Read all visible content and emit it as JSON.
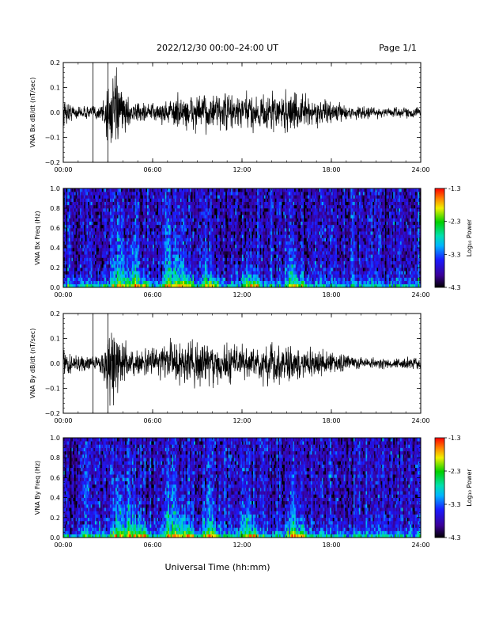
{
  "header": {
    "title": "2022/12/30   00:00–24:00 UT",
    "page": "Page 1/1"
  },
  "colorbar": {
    "label": "Log₁₀ Power",
    "ticks": [
      "-1.3",
      "-2.3",
      "-3.3",
      "-4.3"
    ]
  },
  "xlabel": "Universal Time (hh:mm)",
  "chart_data": [
    {
      "type": "line",
      "ylabel": "VNA Bx dB/dt (nT/sec)",
      "xlim_hours": [
        0,
        24
      ],
      "ylim": [
        -0.2,
        0.2
      ],
      "x_ticks": [
        "00:00",
        "06:00",
        "12:00",
        "18:00",
        "24:00"
      ],
      "y_ticks": [
        "0.2",
        "0.1",
        "0.0",
        "−0.1",
        "−0.2"
      ],
      "envelope": {
        "hours": [
          0,
          0.5,
          1,
          1.5,
          2,
          2.5,
          3,
          3.5,
          4,
          4.5,
          5,
          6,
          7,
          8,
          9,
          10,
          11,
          12,
          13,
          14,
          15,
          16,
          17,
          18,
          19,
          20,
          21,
          22,
          23,
          24
        ],
        "amplitude": [
          0.09,
          0.05,
          0.035,
          0.035,
          0.04,
          0.05,
          0.2,
          0.2,
          0.12,
          0.06,
          0.06,
          0.05,
          0.07,
          0.1,
          0.1,
          0.1,
          0.11,
          0.1,
          0.1,
          0.11,
          0.12,
          0.1,
          0.07,
          0.06,
          0.04,
          0.035,
          0.03,
          0.03,
          0.03,
          0.03
        ]
      }
    },
    {
      "type": "heatmap",
      "ylabel": "VNA Bx Freq (Hz)",
      "xlim_hours": [
        0,
        24
      ],
      "ylim": [
        0,
        1.0
      ],
      "x_ticks": [
        "00:00",
        "06:00",
        "12:00",
        "18:00",
        "24:00"
      ],
      "y_ticks": [
        "1.0",
        "0.8",
        "0.6",
        "0.4",
        "0.2",
        "0.0"
      ],
      "zlim": [
        -4.3,
        -1.3
      ]
    },
    {
      "type": "line",
      "ylabel": "VNA By dB/dt (nT/sec)",
      "xlim_hours": [
        0,
        24
      ],
      "ylim": [
        -0.2,
        0.2
      ],
      "x_ticks": [
        "00:00",
        "06:00",
        "12:00",
        "18:00",
        "24:00"
      ],
      "y_ticks": [
        "0.2",
        "0.1",
        "0.0",
        "−0.1",
        "−0.2"
      ],
      "envelope": {
        "hours": [
          0,
          0.5,
          1,
          1.5,
          2,
          2.5,
          3,
          3.5,
          4,
          4.5,
          5,
          6,
          7,
          8,
          9,
          10,
          11,
          12,
          13,
          14,
          15,
          16,
          17,
          18,
          19,
          20,
          21,
          22,
          23,
          24
        ],
        "amplitude": [
          0.08,
          0.06,
          0.05,
          0.04,
          0.05,
          0.06,
          0.2,
          0.2,
          0.12,
          0.08,
          0.08,
          0.08,
          0.12,
          0.13,
          0.12,
          0.12,
          0.12,
          0.1,
          0.1,
          0.12,
          0.1,
          0.09,
          0.08,
          0.07,
          0.05,
          0.04,
          0.035,
          0.03,
          0.035,
          0.03
        ]
      }
    },
    {
      "type": "heatmap",
      "ylabel": "VNA By Freq (Hz)",
      "xlim_hours": [
        0,
        24
      ],
      "ylim": [
        0,
        1.0
      ],
      "x_ticks": [
        "00:00",
        "06:00",
        "12:00",
        "18:00",
        "24:00"
      ],
      "y_ticks": [
        "1.0",
        "0.8",
        "0.6",
        "0.4",
        "0.2",
        "0.0"
      ],
      "zlim": [
        -4.3,
        -1.3
      ]
    }
  ]
}
